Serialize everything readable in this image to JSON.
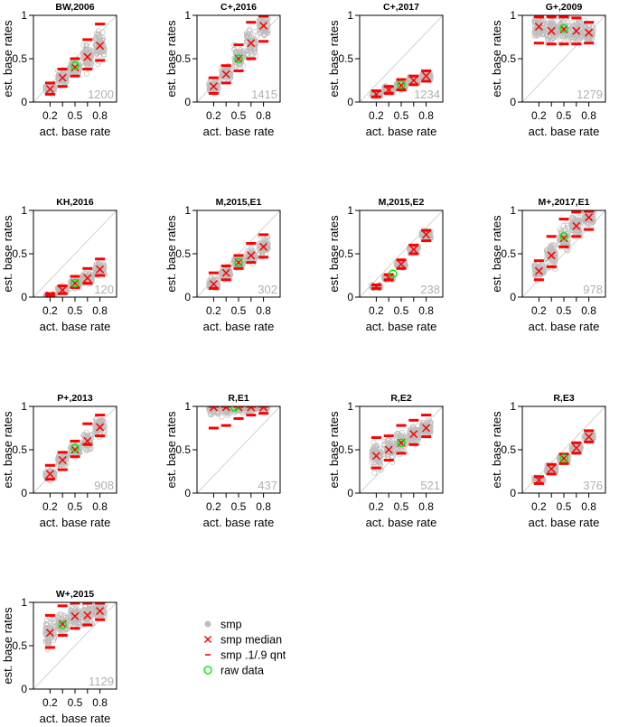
{
  "chart_data": {
    "type": "scatter",
    "description_free": true,
    "xlabel": "act. base rate",
    "ylabel": "est. base rates",
    "xlim": [
      0,
      1
    ],
    "ylim": [
      0,
      1
    ],
    "x_ticks": [
      0.2,
      0.35,
      0.5,
      0.65,
      0.8
    ],
    "x_tick_labels": [
      "0.2",
      "0.5",
      "0.8"
    ],
    "x_tick_label_positions": [
      0.2,
      0.5,
      0.8
    ],
    "y_ticks": [
      0,
      0.5,
      1
    ],
    "y_tick_labels": [
      "0",
      "0.5",
      "1"
    ],
    "reference_line": "identity",
    "legend": {
      "placement": "bottom-center",
      "entries": [
        {
          "symbol": "dot",
          "label": "smp",
          "color": "#bdbdbd"
        },
        {
          "symbol": "x",
          "label": "smp median",
          "color": "#ff0000"
        },
        {
          "symbol": "dash",
          "label": "smp .1/.9 qnt",
          "color": "#ff0000"
        },
        {
          "symbol": "circle",
          "label": "raw data",
          "color": "#00ee00"
        }
      ]
    },
    "colors": {
      "sample": "#bdbdbd",
      "median": "#ff0000",
      "raw": "#00ee00",
      "count": "#b0b0b0",
      "diag": "#c8c8c8"
    },
    "panels": [
      {
        "title": "BW,2006",
        "count": "1200",
        "median": [
          0.15,
          0.28,
          0.4,
          0.52,
          0.65
        ],
        "q10": [
          0.09,
          0.18,
          0.3,
          0.38,
          0.48
        ],
        "q90": [
          0.22,
          0.38,
          0.5,
          0.72,
          0.9
        ],
        "raw_x": 0.5,
        "raw_y": 0.42
      },
      {
        "title": "C+,2016",
        "count": "1415",
        "median": [
          0.18,
          0.32,
          0.5,
          0.68,
          0.88
        ],
        "q10": [
          0.1,
          0.22,
          0.36,
          0.5,
          0.7
        ],
        "q90": [
          0.28,
          0.42,
          0.66,
          0.92,
          0.99
        ],
        "raw_x": 0.5,
        "raw_y": 0.5
      },
      {
        "title": "C+,2017",
        "count": "1234",
        "median": [
          0.09,
          0.14,
          0.19,
          0.25,
          0.3
        ],
        "q10": [
          0.06,
          0.1,
          0.14,
          0.2,
          0.24
        ],
        "q90": [
          0.13,
          0.18,
          0.26,
          0.3,
          0.36
        ],
        "raw_x": 0.5,
        "raw_y": 0.2
      },
      {
        "title": "G+,2009",
        "count": "1279",
        "median": [
          0.87,
          0.82,
          0.84,
          0.82,
          0.8
        ],
        "q10": [
          0.68,
          0.67,
          0.67,
          0.67,
          0.68
        ],
        "q90": [
          0.98,
          0.98,
          0.98,
          0.97,
          0.92
        ],
        "raw_x": 0.5,
        "raw_y": 0.85
      },
      {
        "title": "KH,2016",
        "count": "120",
        "median": [
          0.02,
          0.08,
          0.16,
          0.22,
          0.32
        ],
        "q10": [
          0.01,
          0.04,
          0.11,
          0.16,
          0.25
        ],
        "q90": [
          0.04,
          0.13,
          0.24,
          0.33,
          0.44
        ],
        "raw_x": 0.5,
        "raw_y": 0.16
      },
      {
        "title": "M,2015,E1",
        "count": "302",
        "median": [
          0.15,
          0.28,
          0.4,
          0.48,
          0.58
        ],
        "q10": [
          0.1,
          0.2,
          0.33,
          0.4,
          0.46
        ],
        "q90": [
          0.28,
          0.36,
          0.48,
          0.62,
          0.72
        ],
        "raw_x": 0.5,
        "raw_y": 0.4
      },
      {
        "title": "M,2015,E2",
        "count": "238",
        "median": [
          0.12,
          0.22,
          0.38,
          0.55,
          0.72
        ],
        "q10": [
          0.1,
          0.2,
          0.33,
          0.5,
          0.65
        ],
        "q90": [
          0.14,
          0.26,
          0.43,
          0.6,
          0.77
        ],
        "raw_x": 0.4,
        "raw_y": 0.27
      },
      {
        "title": "M+,2017,E1",
        "count": "978",
        "median": [
          0.3,
          0.48,
          0.68,
          0.82,
          0.92
        ],
        "q10": [
          0.2,
          0.35,
          0.58,
          0.7,
          0.78
        ],
        "q90": [
          0.42,
          0.7,
          0.9,
          0.98,
          0.99
        ],
        "raw_x": 0.5,
        "raw_y": 0.7
      },
      {
        "title": "P+,2013",
        "count": "908",
        "median": [
          0.22,
          0.38,
          0.5,
          0.6,
          0.76
        ],
        "q10": [
          0.16,
          0.27,
          0.42,
          0.56,
          0.66
        ],
        "q90": [
          0.32,
          0.47,
          0.6,
          0.8,
          0.9
        ],
        "raw_x": 0.5,
        "raw_y": 0.52
      },
      {
        "title": "R,E1",
        "count": "437",
        "median": [
          0.99,
          0.99,
          0.99,
          0.99,
          0.99
        ],
        "q10": [
          0.75,
          0.78,
          0.86,
          0.9,
          0.92
        ],
        "q90": [
          1.0,
          1.0,
          1.0,
          1.0,
          1.0
        ],
        "raw_x": 0.45,
        "raw_y": 0.99
      },
      {
        "title": "R,E2",
        "count": "521",
        "median": [
          0.43,
          0.5,
          0.58,
          0.68,
          0.75
        ],
        "q10": [
          0.29,
          0.38,
          0.46,
          0.56,
          0.65
        ],
        "q90": [
          0.64,
          0.66,
          0.78,
          0.84,
          0.9
        ],
        "raw_x": 0.5,
        "raw_y": 0.58
      },
      {
        "title": "R,E3",
        "count": "376",
        "median": [
          0.15,
          0.28,
          0.4,
          0.52,
          0.65
        ],
        "q10": [
          0.11,
          0.22,
          0.34,
          0.46,
          0.59
        ],
        "q90": [
          0.19,
          0.33,
          0.45,
          0.58,
          0.72
        ],
        "raw_x": 0.5,
        "raw_y": 0.4
      },
      {
        "title": "W+,2015",
        "count": "1129",
        "median": [
          0.65,
          0.75,
          0.84,
          0.85,
          0.9
        ],
        "q10": [
          0.48,
          0.62,
          0.7,
          0.74,
          0.8
        ],
        "q90": [
          0.85,
          0.96,
          0.99,
          0.99,
          0.99
        ],
        "raw_x": 0.35,
        "raw_y": 0.74
      }
    ]
  }
}
